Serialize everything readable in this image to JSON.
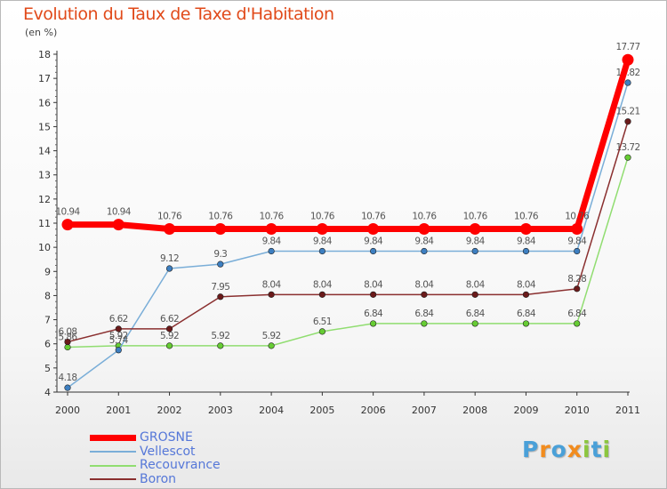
{
  "title": "Evolution du Taux de Taxe d'Habitation",
  "subtitle": "(en %)",
  "logo": {
    "text": "Proxiti",
    "letters": [
      "P",
      "r",
      "o",
      "x",
      "i",
      "t",
      "i"
    ],
    "colors": [
      "#4aa0d8",
      "#f28c1e",
      "#4aa0d8",
      "#f28c1e",
      "#8cc63f",
      "#4aa0d8",
      "#8cc63f"
    ]
  },
  "chart_data": {
    "type": "line",
    "title": "Evolution du Taux de Taxe d'Habitation",
    "ylabel": "(en %)",
    "xlabel": "",
    "ylim": [
      4,
      18
    ],
    "yticks": [
      "4",
      "5",
      "6",
      "7",
      "8",
      "9",
      "10",
      "11",
      "12",
      "13",
      "14",
      "15",
      "16",
      "17",
      "18"
    ],
    "categories": [
      "2000",
      "2001",
      "2002",
      "2003",
      "2004",
      "2005",
      "2006",
      "2007",
      "2008",
      "2009",
      "2010",
      "2011"
    ],
    "grid": false,
    "legend_position": "bottom-left",
    "series": [
      {
        "name": "Recouvrance",
        "color": "#90dd70",
        "marker": "#66cc33",
        "values": [
          5.86,
          5.92,
          5.92,
          5.92,
          5.92,
          6.51,
          6.84,
          6.84,
          6.84,
          6.84,
          6.84,
          13.72
        ],
        "labels": [
          "5.86",
          "5.92",
          "5.92",
          "5.92",
          "5.92",
          "6.51",
          "6.84",
          "6.84",
          "6.84",
          "6.84",
          "6.84",
          "13.72"
        ]
      },
      {
        "name": "Vellescot",
        "color": "#7aaed8",
        "marker": "#3d7fc1",
        "values": [
          4.18,
          5.74,
          9.12,
          9.3,
          9.84,
          9.84,
          9.84,
          9.84,
          9.84,
          9.84,
          9.84,
          16.82
        ],
        "labels": [
          "4.18",
          "5.74",
          "9.12",
          "9.3",
          "9.84",
          "9.84",
          "9.84",
          "9.84",
          "9.84",
          "9.84",
          "9.84",
          "16.82"
        ]
      },
      {
        "name": "Boron",
        "color": "#8a2f2f",
        "marker": "#6b1a1a",
        "values": [
          6.08,
          6.62,
          6.62,
          7.95,
          8.04,
          8.04,
          8.04,
          8.04,
          8.04,
          8.04,
          8.28,
          15.21
        ],
        "labels": [
          "6.08",
          "6.62",
          "6.62",
          "7.95",
          "8.04",
          "8.04",
          "8.04",
          "8.04",
          "8.04",
          "8.04",
          "8.28",
          "15.21"
        ]
      },
      {
        "name": "GROSNE",
        "color": "#ff0000",
        "marker": "#ff0000",
        "values": [
          10.94,
          10.94,
          10.76,
          10.76,
          10.76,
          10.76,
          10.76,
          10.76,
          10.76,
          10.76,
          10.76,
          17.77
        ],
        "labels": [
          "10.94",
          "10.94",
          "10.76",
          "10.76",
          "10.76",
          "10.76",
          "10.76",
          "10.76",
          "10.76",
          "10.76",
          "10.76",
          "17.77"
        ]
      }
    ],
    "legend": [
      {
        "name": "GROSNE",
        "color": "#ff0000"
      },
      {
        "name": "Vellescot",
        "color": "#7aaed8"
      },
      {
        "name": "Recouvrance",
        "color": "#90dd70"
      },
      {
        "name": "Boron",
        "color": "#8a2f2f"
      }
    ]
  }
}
